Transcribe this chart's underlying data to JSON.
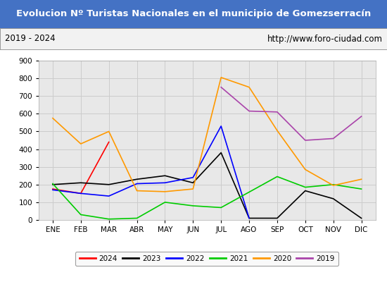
{
  "title": "Evolucion Nº Turistas Nacionales en el municipio de Gomezserracín",
  "subtitle_left": "2019 - 2024",
  "subtitle_right": "http://www.foro-ciudad.com",
  "title_bg": "#4472c4",
  "title_color": "#ffffff",
  "months": [
    "ENE",
    "FEB",
    "MAR",
    "ABR",
    "MAY",
    "JUN",
    "JUL",
    "AGO",
    "SEP",
    "OCT",
    "NOV",
    "DIC"
  ],
  "series": {
    "2024": {
      "color": "#ff0000",
      "data": [
        175,
        150,
        440,
        null,
        null,
        null,
        null,
        null,
        null,
        null,
        null,
        null
      ]
    },
    "2023": {
      "color": "#000000",
      "data": [
        200,
        210,
        200,
        230,
        250,
        210,
        380,
        10,
        10,
        165,
        120,
        10
      ]
    },
    "2022": {
      "color": "#0000ff",
      "data": [
        170,
        150,
        135,
        205,
        210,
        240,
        530,
        10,
        null,
        null,
        null,
        null
      ]
    },
    "2021": {
      "color": "#00cc00",
      "data": [
        205,
        30,
        5,
        10,
        100,
        80,
        70,
        null,
        245,
        185,
        200,
        175
      ]
    },
    "2020": {
      "color": "#ff9900",
      "data": [
        575,
        430,
        500,
        165,
        160,
        175,
        805,
        750,
        505,
        285,
        195,
        230
      ]
    },
    "2019": {
      "color": "#aa44aa",
      "data": [
        null,
        null,
        null,
        null,
        null,
        null,
        750,
        615,
        610,
        450,
        460,
        585
      ]
    }
  },
  "ylim": [
    0,
    900
  ],
  "yticks": [
    0,
    100,
    200,
    300,
    400,
    500,
    600,
    700,
    800,
    900
  ],
  "grid_color": "#cccccc",
  "plot_bg": "#e8e8e8",
  "fig_bg": "#ffffff",
  "legend_order": [
    "2024",
    "2023",
    "2022",
    "2021",
    "2020",
    "2019"
  ],
  "title_fontsize": 9.5,
  "tick_fontsize": 7.5,
  "legend_fontsize": 7.5
}
